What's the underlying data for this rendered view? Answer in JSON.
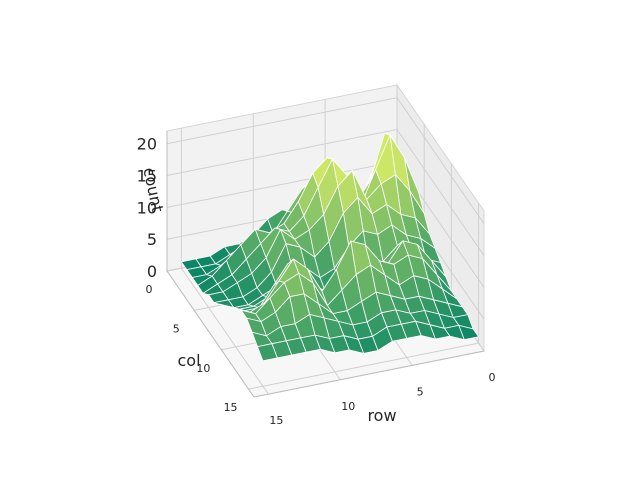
{
  "chart_data": {
    "type": "surface3d",
    "title": "",
    "xlabel": "row",
    "ylabel": "col",
    "zlabel": "count",
    "xlim": [
      0,
      16
    ],
    "ylim": [
      0,
      16
    ],
    "zlim": [
      0,
      22
    ],
    "x_ticks": [
      "0",
      "5",
      "10",
      "15"
    ],
    "y_ticks": [
      "0",
      "5",
      "10",
      "15"
    ],
    "z_ticks": [
      "0",
      "5",
      "10",
      "15",
      "20"
    ],
    "colormap": "summer",
    "grid": true,
    "x": [
      0,
      1,
      2,
      3,
      4,
      5,
      6,
      7,
      8,
      9,
      10,
      11,
      12,
      13,
      14,
      15
    ],
    "y": [
      0,
      1,
      2,
      3,
      4,
      5,
      6,
      7,
      8,
      9,
      10,
      11,
      12,
      13,
      14,
      15
    ],
    "z": [
      [
        2,
        3,
        5,
        3,
        2,
        2,
        3,
        4,
        6,
        5,
        3,
        2,
        2,
        1,
        1,
        1
      ],
      [
        4,
        7,
        11,
        6,
        4,
        5,
        8,
        10,
        7,
        4,
        3,
        3,
        2,
        1,
        1,
        1
      ],
      [
        6,
        10,
        14,
        9,
        6,
        9,
        14,
        12,
        8,
        5,
        4,
        5,
        3,
        2,
        1,
        1
      ],
      [
        9,
        14,
        19,
        12,
        9,
        13,
        17,
        15,
        11,
        8,
        7,
        8,
        6,
        4,
        2,
        1
      ],
      [
        10,
        16,
        20,
        15,
        10,
        15,
        18,
        14,
        10,
        8,
        9,
        7,
        5,
        3,
        2,
        1
      ],
      [
        8,
        12,
        15,
        14,
        12,
        17,
        15,
        11,
        9,
        8,
        10,
        6,
        4,
        3,
        2,
        2
      ],
      [
        6,
        9,
        10,
        12,
        11,
        14,
        12,
        8,
        6,
        8,
        9,
        5,
        3,
        2,
        2,
        2
      ],
      [
        5,
        7,
        8,
        10,
        9,
        10,
        8,
        5,
        4,
        6,
        7,
        4,
        3,
        2,
        2,
        3
      ],
      [
        4,
        5,
        7,
        8,
        6,
        6,
        5,
        4,
        3,
        5,
        6,
        5,
        4,
        3,
        3,
        4
      ],
      [
        3,
        6,
        9,
        10,
        7,
        6,
        8,
        10,
        6,
        4,
        8,
        10,
        7,
        4,
        4,
        5
      ],
      [
        2,
        5,
        8,
        9,
        8,
        9,
        12,
        13,
        9,
        6,
        10,
        12,
        9,
        6,
        5,
        6
      ],
      [
        2,
        4,
        6,
        7,
        6,
        8,
        10,
        9,
        7,
        5,
        9,
        11,
        10,
        8,
        6,
        7
      ],
      [
        2,
        3,
        4,
        5,
        5,
        6,
        7,
        6,
        5,
        5,
        7,
        9,
        9,
        7,
        6,
        7
      ],
      [
        2,
        2,
        3,
        4,
        4,
        5,
        5,
        4,
        4,
        5,
        6,
        7,
        6,
        6,
        5,
        6
      ],
      [
        1,
        2,
        2,
        3,
        4,
        4,
        4,
        3,
        3,
        4,
        4,
        5,
        5,
        5,
        5,
        5
      ],
      [
        1,
        1,
        2,
        2,
        3,
        3,
        3,
        2,
        2,
        3,
        3,
        4,
        4,
        4,
        4,
        4
      ]
    ]
  }
}
